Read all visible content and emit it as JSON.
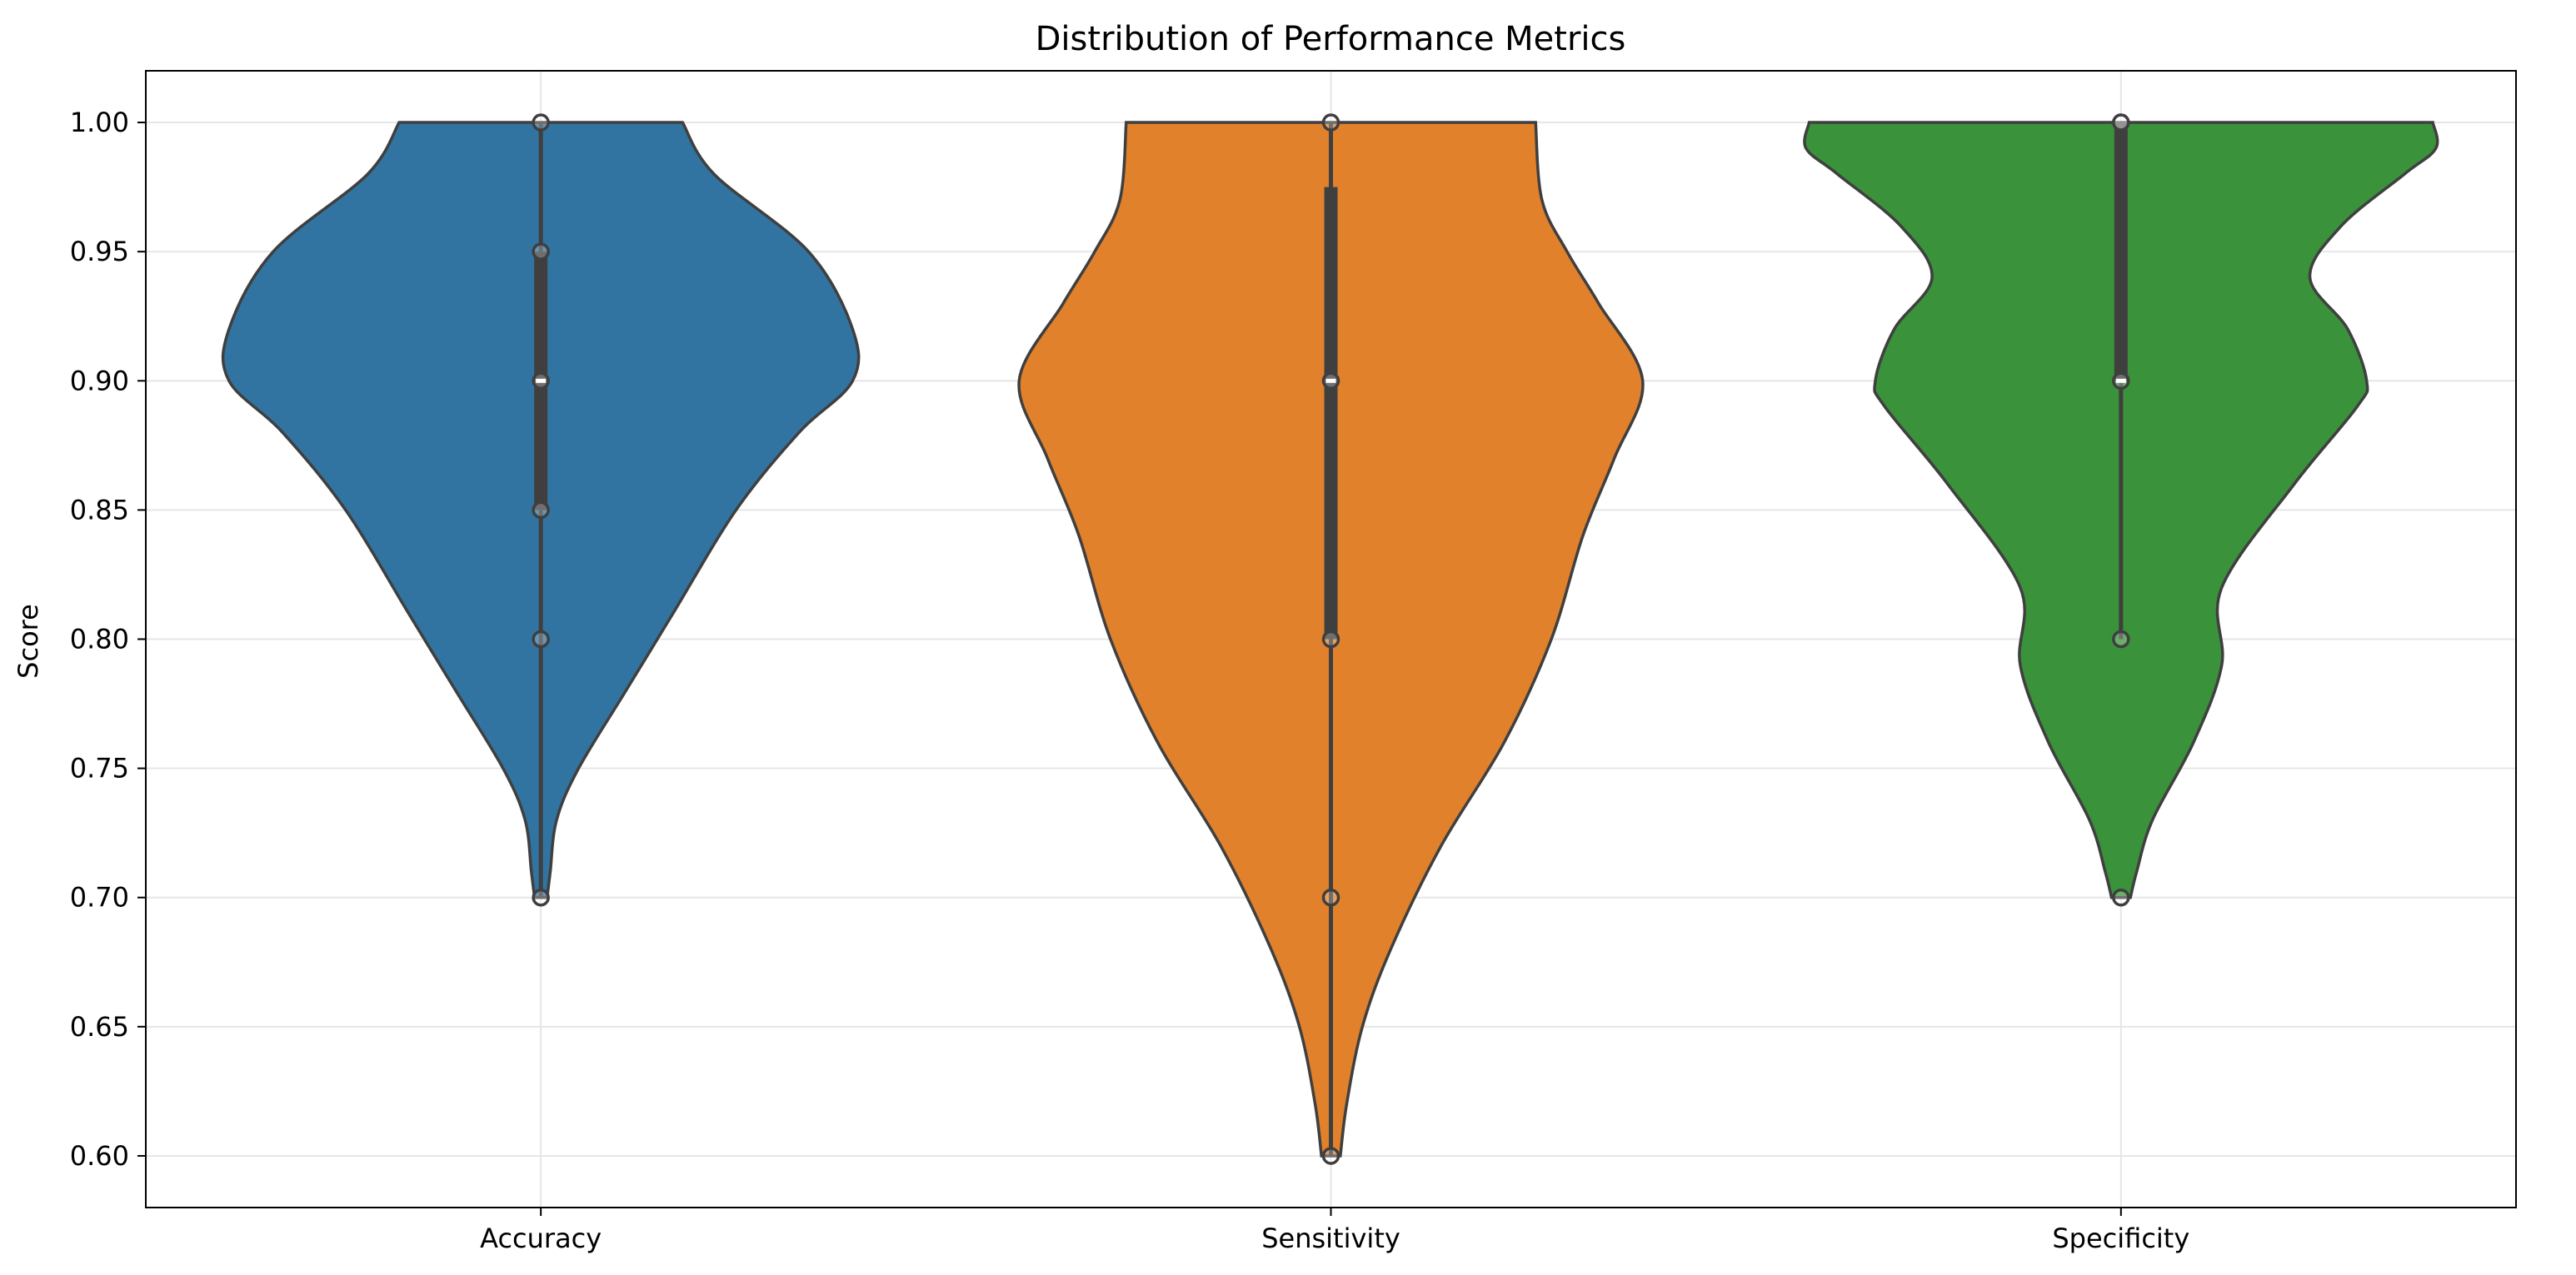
{
  "chart_data": {
    "type": "violin",
    "title": "Distribution of Performance Metrics",
    "xlabel": "",
    "ylabel": "Score",
    "ylim": [
      0.58,
      1.02
    ],
    "yticks": [
      0.6,
      0.65,
      0.7,
      0.75,
      0.8,
      0.85,
      0.9,
      0.95,
      1.0
    ],
    "ytick_labels": [
      "0.60",
      "0.65",
      "0.70",
      "0.75",
      "0.80",
      "0.85",
      "0.90",
      "0.95",
      "1.00"
    ],
    "grid": true,
    "categories": [
      "Accuracy",
      "Sensitivity",
      "Specificity"
    ],
    "series": [
      {
        "name": "Accuracy",
        "color": "#3274a1",
        "points": [
          1.0,
          0.95,
          0.9,
          0.85,
          0.8,
          0.7
        ],
        "q1": 0.85,
        "median": 0.9,
        "q3": 0.95,
        "whisker_low": 0.7,
        "whisker_high": 1.0,
        "density": [
          [
            0.7,
            0.02
          ],
          [
            0.71,
            0.03
          ],
          [
            0.73,
            0.05
          ],
          [
            0.75,
            0.12
          ],
          [
            0.78,
            0.27
          ],
          [
            0.81,
            0.42
          ],
          [
            0.85,
            0.62
          ],
          [
            0.88,
            0.82
          ],
          [
            0.9,
            0.99
          ],
          [
            0.92,
            0.99
          ],
          [
            0.95,
            0.85
          ],
          [
            0.98,
            0.55
          ],
          [
            1.0,
            0.45
          ]
        ]
      },
      {
        "name": "Sensitivity",
        "color": "#e1812c",
        "points": [
          1.0,
          0.9,
          0.8,
          0.7,
          0.6
        ],
        "q1": 0.8,
        "median": 0.9,
        "q3": 0.975,
        "whisker_low": 0.6,
        "whisker_high": 1.0,
        "density": [
          [
            0.6,
            0.03
          ],
          [
            0.62,
            0.05
          ],
          [
            0.65,
            0.1
          ],
          [
            0.68,
            0.19
          ],
          [
            0.72,
            0.35
          ],
          [
            0.76,
            0.55
          ],
          [
            0.8,
            0.7
          ],
          [
            0.84,
            0.8
          ],
          [
            0.87,
            0.9
          ],
          [
            0.9,
            0.99
          ],
          [
            0.93,
            0.85
          ],
          [
            0.95,
            0.75
          ],
          [
            0.97,
            0.67
          ],
          [
            1.0,
            0.65
          ]
        ]
      },
      {
        "name": "Specificity",
        "color": "#3a923a",
        "points": [
          1.0,
          1.0,
          0.9,
          0.8,
          0.7
        ],
        "q1": 0.9,
        "median": 0.9,
        "q3": 1.0,
        "whisker_low": 0.8,
        "whisker_high": 1.0,
        "density": [
          [
            0.7,
            0.03
          ],
          [
            0.71,
            0.05
          ],
          [
            0.73,
            0.1
          ],
          [
            0.76,
            0.23
          ],
          [
            0.79,
            0.32
          ],
          [
            0.82,
            0.32
          ],
          [
            0.86,
            0.55
          ],
          [
            0.89,
            0.75
          ],
          [
            0.9,
            0.78
          ],
          [
            0.92,
            0.72
          ],
          [
            0.94,
            0.6
          ],
          [
            0.96,
            0.7
          ],
          [
            0.98,
            0.9
          ],
          [
            0.99,
            1.0
          ],
          [
            1.0,
            0.99
          ]
        ]
      }
    ]
  }
}
